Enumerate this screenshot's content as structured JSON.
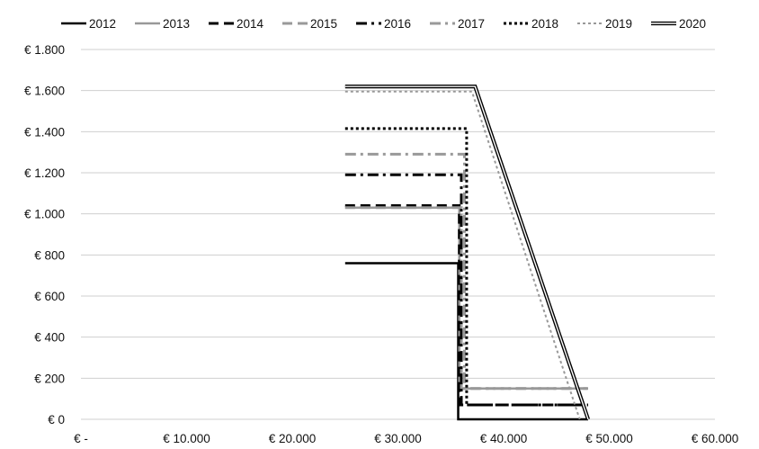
{
  "chart_data": {
    "type": "line",
    "title": "",
    "xlabel": "",
    "ylabel": "",
    "xlim": [
      0,
      60000
    ],
    "ylim": [
      0,
      1800
    ],
    "grid": true,
    "legend_position": "top",
    "x_ticks": [
      {
        "value": 0,
        "label": "€ -"
      },
      {
        "value": 10000,
        "label": "€ 10.000"
      },
      {
        "value": 20000,
        "label": "€ 20.000"
      },
      {
        "value": 30000,
        "label": "€ 30.000"
      },
      {
        "value": 40000,
        "label": "€ 40.000"
      },
      {
        "value": 50000,
        "label": "€ 50.000"
      },
      {
        "value": 60000,
        "label": "€ 60.000"
      }
    ],
    "y_ticks": [
      {
        "value": 0,
        "label": "€ 0"
      },
      {
        "value": 200,
        "label": "€ 200"
      },
      {
        "value": 400,
        "label": "€ 400"
      },
      {
        "value": 600,
        "label": "€ 600"
      },
      {
        "value": 800,
        "label": "€ 800"
      },
      {
        "value": 1000,
        "label": "€ 1.000"
      },
      {
        "value": 1200,
        "label": "€ 1.200"
      },
      {
        "value": 1400,
        "label": "€ 1.400"
      },
      {
        "value": 1600,
        "label": "€ 1.600"
      },
      {
        "value": 1800,
        "label": "€ 1.800"
      }
    ],
    "series": [
      {
        "name": "2012",
        "color": "#000000",
        "dash": "solid",
        "width": 2.5,
        "points": [
          [
            25000,
            760
          ],
          [
            35700,
            760
          ],
          [
            35700,
            0
          ],
          [
            48000,
            0
          ]
        ]
      },
      {
        "name": "2013",
        "color": "#999999",
        "dash": "solid",
        "width": 2.5,
        "points": [
          [
            25000,
            1030
          ],
          [
            35800,
            1030
          ],
          [
            35800,
            150
          ],
          [
            48000,
            150
          ]
        ]
      },
      {
        "name": "2014",
        "color": "#000000",
        "dash": "dash",
        "width": 3,
        "points": [
          [
            25000,
            1040
          ],
          [
            35800,
            1040
          ],
          [
            35800,
            70
          ],
          [
            48000,
            70
          ]
        ]
      },
      {
        "name": "2015",
        "color": "#999999",
        "dash": "dash",
        "width": 3,
        "points": [
          [
            25000,
            1030
          ],
          [
            36000,
            1030
          ],
          [
            36000,
            150
          ],
          [
            48000,
            150
          ]
        ]
      },
      {
        "name": "2016",
        "color": "#000000",
        "dash": "dashdot",
        "width": 3,
        "points": [
          [
            25000,
            1190
          ],
          [
            36000,
            1190
          ],
          [
            36000,
            70
          ],
          [
            48000,
            70
          ]
        ]
      },
      {
        "name": "2017",
        "color": "#999999",
        "dash": "dashdot",
        "width": 3,
        "points": [
          [
            25000,
            1290
          ],
          [
            36300,
            1290
          ],
          [
            36300,
            150
          ],
          [
            48000,
            150
          ]
        ]
      },
      {
        "name": "2018",
        "color": "#000000",
        "dash": "dot",
        "width": 3,
        "points": [
          [
            25000,
            1415
          ],
          [
            36500,
            1415
          ],
          [
            36500,
            70
          ],
          [
            48000,
            70
          ]
        ]
      },
      {
        "name": "2019",
        "color": "#999999",
        "dash": "dot",
        "width": 2,
        "points": [
          [
            25000,
            1595
          ],
          [
            37000,
            1595
          ],
          [
            47200,
            0
          ]
        ]
      },
      {
        "name": "2020",
        "color": "#000000",
        "dash": "double",
        "width": 1.2,
        "points": [
          [
            25000,
            1620
          ],
          [
            37300,
            1620
          ],
          [
            48000,
            0
          ]
        ]
      }
    ]
  }
}
